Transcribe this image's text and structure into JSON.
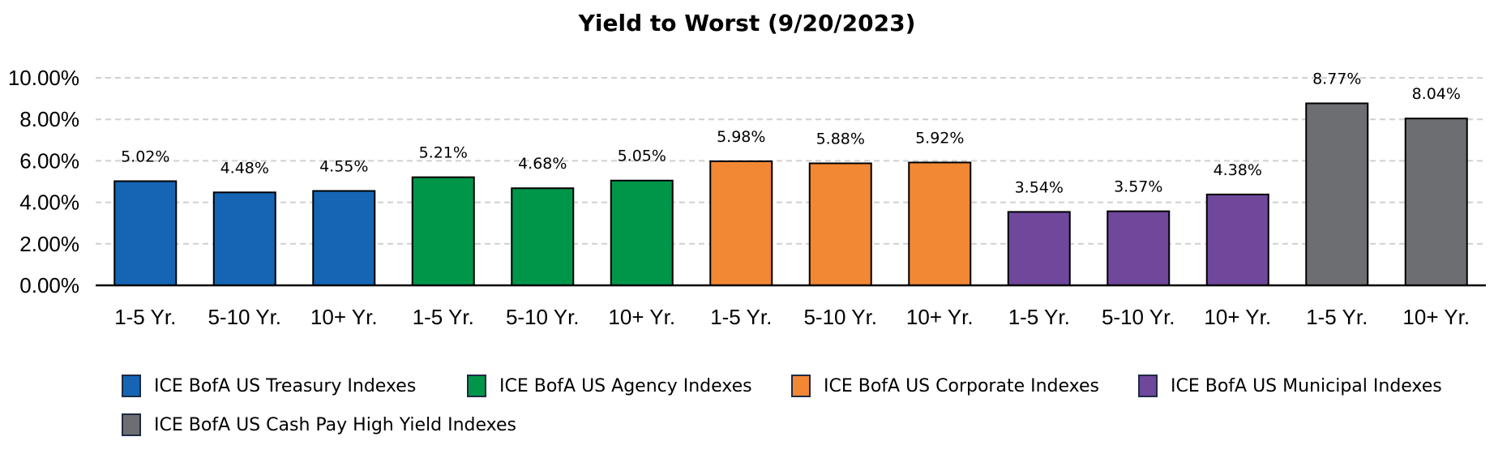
{
  "chart_data": {
    "type": "bar",
    "title": "Yield to Worst (9/20/2023)",
    "xlabel": "",
    "ylabel": "",
    "ylim": [
      0,
      10
    ],
    "yticks": [
      "0.00%",
      "2.00%",
      "4.00%",
      "6.00%",
      "8.00%",
      "10.00%"
    ],
    "grid": true,
    "legend_position": "bottom",
    "categories": [
      "1-5 Yr.",
      "5-10 Yr.",
      "10+ Yr.",
      "1-5 Yr.",
      "5-10 Yr.",
      "10+ Yr.",
      "1-5 Yr.",
      "5-10 Yr.",
      "10+ Yr.",
      "1-5 Yr.",
      "5-10 Yr.",
      "10+ Yr.",
      "1-5 Yr.",
      "10+ Yr."
    ],
    "values": [
      5.02,
      4.48,
      4.55,
      5.21,
      4.68,
      5.05,
      5.98,
      5.88,
      5.92,
      3.54,
      3.57,
      4.38,
      8.77,
      8.04
    ],
    "value_labels": [
      "5.02%",
      "4.48%",
      "4.55%",
      "5.21%",
      "4.68%",
      "5.05%",
      "5.98%",
      "5.88%",
      "5.92%",
      "3.54%",
      "3.57%",
      "4.38%",
      "8.77%",
      "8.04%"
    ],
    "bar_series": [
      0,
      0,
      0,
      1,
      1,
      1,
      2,
      2,
      2,
      3,
      3,
      3,
      4,
      4
    ],
    "series": [
      {
        "name": "ICE BofA US Treasury Indexes",
        "color": "#1565b4"
      },
      {
        "name": "ICE BofA US Agency Indexes",
        "color": "#00964a"
      },
      {
        "name": "ICE BofA US Corporate Indexes",
        "color": "#f28734"
      },
      {
        "name": "ICE BofA US Municipal Indexes",
        "color": "#6f479b"
      },
      {
        "name": "ICE BofA US Cash Pay High Yield Indexes",
        "color": "#6d6e71"
      }
    ]
  }
}
